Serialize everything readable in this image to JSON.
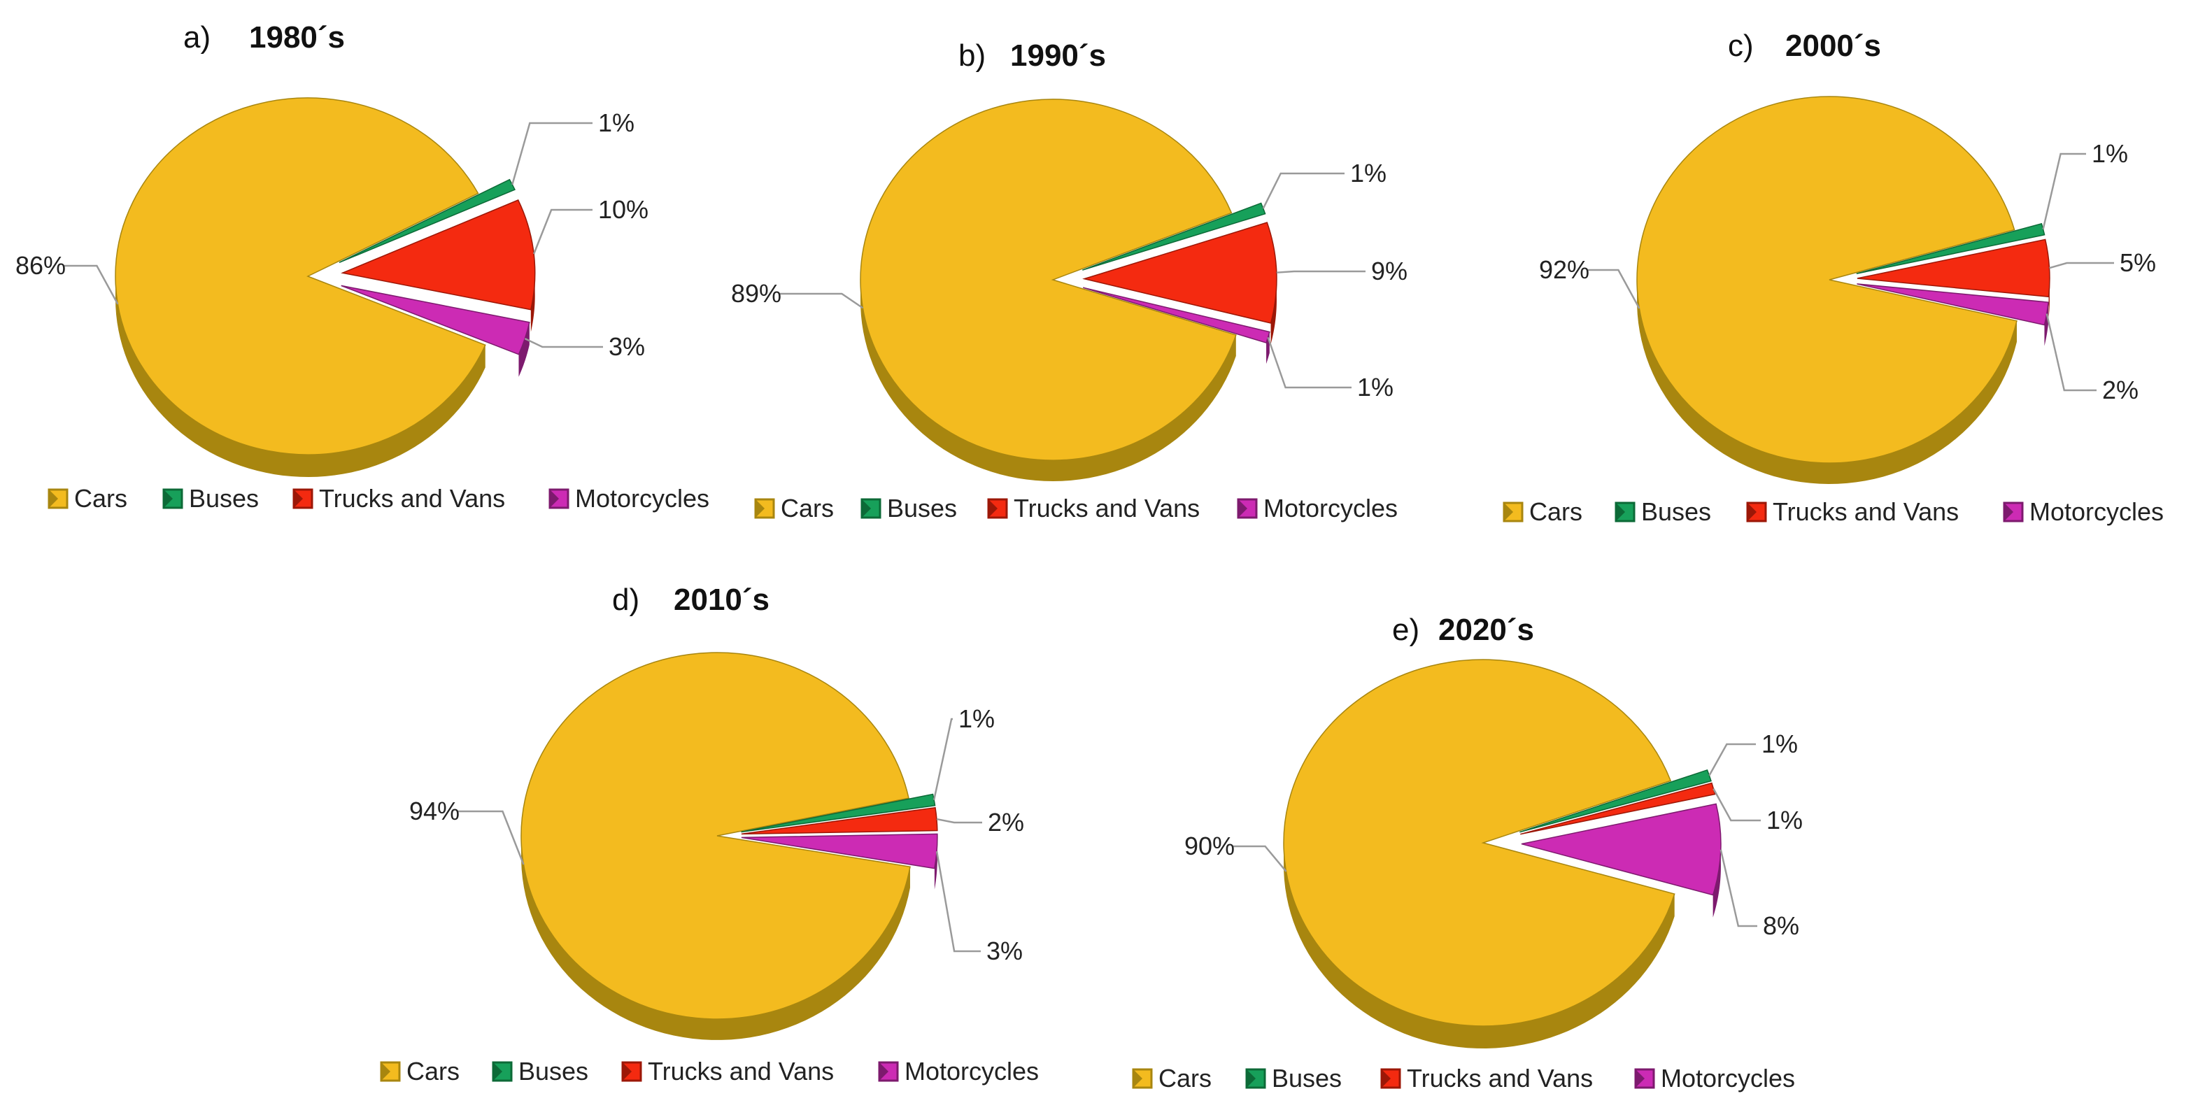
{
  "chart_data": [
    {
      "type": "pie",
      "panel": "a)",
      "title": "1980´s",
      "categories": [
        "Cars",
        "Buses",
        "Trucks and Vans",
        "Motorcycles"
      ],
      "values": [
        86,
        1,
        10,
        3
      ],
      "labels": [
        "86%",
        "1%",
        "10%",
        "3%"
      ],
      "legend": [
        "Cars",
        "Buses",
        "Trucks and Vans",
        "Motorcycles"
      ],
      "legend_position": "bottom"
    },
    {
      "type": "pie",
      "panel": "b)",
      "title": "1990´s",
      "categories": [
        "Cars",
        "Buses",
        "Trucks and Vans",
        "Motorcycles"
      ],
      "values": [
        89,
        1,
        9,
        1
      ],
      "labels": [
        "89%",
        "1%",
        "9%",
        "1%"
      ],
      "legend": [
        "Cars",
        "Buses",
        "Trucks and Vans",
        "Motorcycles"
      ],
      "legend_position": "bottom"
    },
    {
      "type": "pie",
      "panel": "c)",
      "title": "2000´s",
      "categories": [
        "Cars",
        "Buses",
        "Trucks and Vans",
        "Motorcycles"
      ],
      "values": [
        92,
        1,
        5,
        2
      ],
      "labels": [
        "92%",
        "1%",
        "5%",
        "2%"
      ],
      "legend": [
        "Cars",
        "Buses",
        "Trucks and Vans",
        "Motorcycles"
      ],
      "legend_position": "bottom"
    },
    {
      "type": "pie",
      "panel": "d)",
      "title": "2010´s",
      "categories": [
        "Cars",
        "Buses",
        "Trucks and Vans",
        "Motorcycles"
      ],
      "values": [
        94,
        1,
        2,
        3
      ],
      "labels": [
        "94%",
        "1%",
        "2%",
        "3%"
      ],
      "legend": [
        "Cars",
        "Buses",
        "Trucks and Vans",
        "Motorcycles"
      ],
      "legend_position": "bottom"
    },
    {
      "type": "pie",
      "panel": "e)",
      "title": "2020´s",
      "categories": [
        "Cars",
        "Buses",
        "Trucks and Vans",
        "Motorcycles"
      ],
      "values": [
        90,
        1,
        1,
        8
      ],
      "labels": [
        "90%",
        "1%",
        "1%",
        "8%"
      ],
      "legend": [
        "Cars",
        "Buses",
        "Trucks and Vans",
        "Motorcycles"
      ],
      "legend_position": "bottom"
    }
  ],
  "colors": {
    "Cars": "#F3BB1F",
    "Buses": "#17A05A",
    "Trucks and Vans": "#F42A10",
    "Motorcycles": "#CC2BB4"
  },
  "side_colors": {
    "Cars": "#A8860F",
    "Buses": "#0C6A37",
    "Trucks and Vans": "#9C1707",
    "Motorcycles": "#7D1A6E"
  }
}
